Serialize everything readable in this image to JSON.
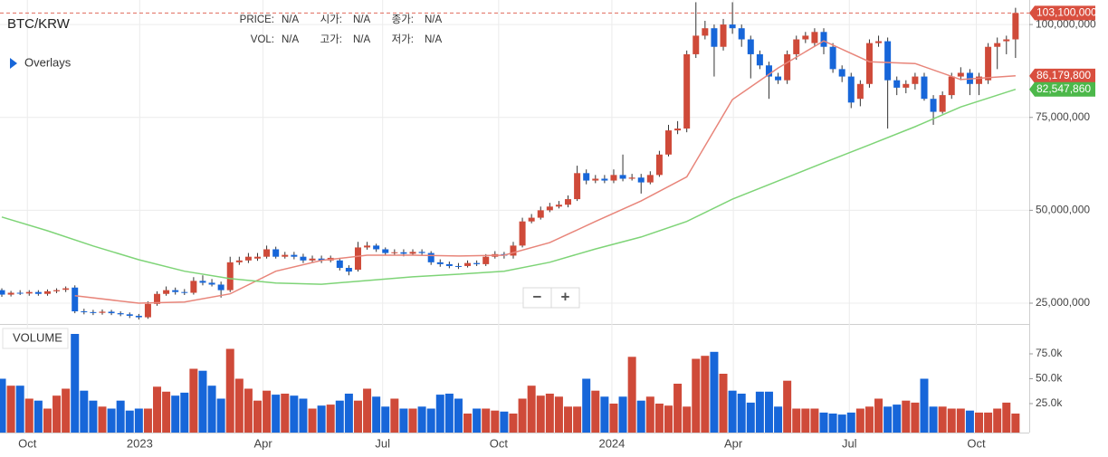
{
  "header": {
    "fields": [
      {
        "label": "PRICE:",
        "value": "N/A"
      },
      {
        "label": "시가:",
        "value": "N/A"
      },
      {
        "label": "종가:",
        "value": "N/A"
      },
      {
        "label": "VOL:",
        "value": "N/A"
      },
      {
        "label": "고가:",
        "value": "N/A"
      },
      {
        "label": "저가:",
        "value": "N/A"
      }
    ],
    "overlays": "Overlays",
    "zoom_out": "−",
    "zoom_in": "+"
  },
  "chart_data": {
    "type": "candlestick",
    "title": "BTC/KRW",
    "up_color": "#cf4a39",
    "down_color": "#1766d9",
    "open": [
      28500000,
      27300000,
      27800000,
      27600000,
      28000000,
      27500000,
      28200000,
      28600000,
      29200000,
      22800000,
      22600000,
      22400000,
      22700000,
      22300000,
      22000000,
      21600000,
      21200000,
      24800000,
      27500000,
      28500000,
      28000000,
      27800000,
      31000000,
      30500000,
      30000000,
      28500000,
      36000000,
      36500000,
      37000000,
      37500000,
      39500000,
      37500000,
      38000000,
      37500000,
      36500000,
      37000000,
      36500000,
      36500000,
      34500000,
      34000000,
      40000000,
      40500000,
      39500000,
      38500000,
      38700000,
      38300000,
      38800000,
      38500000,
      36000000,
      35500000,
      35000000,
      35000000,
      35800000,
      35500000,
      37500000,
      38200000,
      37800000,
      40500000,
      47000000,
      48000000,
      50000000,
      51000000,
      51500000,
      53000000,
      60000000,
      58000000,
      58500000,
      58000000,
      59500000,
      58500000,
      58800000,
      57500000,
      59500000,
      65000000,
      71500000,
      72000000,
      92000000,
      97000000,
      99000000,
      94000000,
      100000000,
      99000000,
      96000000,
      92000000,
      89000000,
      86000000,
      85000000,
      92000000,
      96000000,
      95000000,
      98000000,
      94000000,
      88000000,
      86000000,
      80000000,
      84000000,
      95000000,
      95500000,
      85000000,
      83000000,
      84000000,
      86000000,
      80000000,
      76500000,
      81000000,
      86000000,
      87000000,
      84000000,
      85000000,
      94000000,
      95500000,
      96000000
    ],
    "high": [
      29000000,
      28300000,
      28500000,
      28500000,
      28500000,
      28700000,
      29000000,
      29500000,
      29800000,
      23500000,
      23200000,
      23300000,
      23200000,
      22800000,
      22500000,
      22100000,
      25500000,
      28200000,
      29500000,
      29200000,
      28800000,
      32000000,
      32500000,
      31500000,
      30800000,
      37500000,
      37500000,
      38500000,
      38500000,
      40500000,
      40200000,
      38800000,
      38800000,
      38300000,
      37800000,
      37800000,
      37800000,
      37200000,
      35200000,
      41500000,
      41500000,
      41000000,
      40000000,
      39500000,
      39500000,
      39500000,
      39500000,
      39000000,
      36800000,
      36200000,
      35800000,
      36500000,
      36500000,
      38200000,
      39000000,
      38800000,
      41500000,
      48000000,
      49000000,
      51000000,
      52000000,
      52500000,
      54000000,
      62000000,
      61000000,
      59500000,
      59500000,
      61000000,
      65000000,
      59800000,
      59800000,
      60500000,
      66000000,
      73000000,
      74000000,
      93000000,
      106000000,
      101000000,
      100000000,
      101500000,
      106000000,
      100000000,
      97000000,
      93000000,
      90000000,
      87000000,
      93000000,
      97000000,
      98000000,
      99000000,
      99000000,
      95000000,
      89000000,
      87000000,
      85000000,
      96000000,
      97000000,
      96500000,
      86000000,
      85000000,
      87000000,
      87000000,
      81000000,
      82000000,
      87000000,
      88500000,
      88000000,
      87000000,
      95000000,
      96500000,
      97000000,
      104500000
    ],
    "low": [
      26700000,
      26800000,
      27200000,
      27000000,
      27000000,
      27000000,
      27700000,
      28000000,
      22300000,
      22000000,
      21800000,
      21900000,
      21800000,
      21500000,
      21000000,
      20600000,
      20800000,
      24300000,
      27000000,
      27300000,
      27200000,
      27300000,
      29800000,
      29500000,
      26500000,
      28000000,
      35300000,
      35800000,
      36400000,
      37000000,
      37000000,
      37000000,
      36800000,
      35800000,
      36000000,
      35800000,
      36000000,
      33800000,
      32500000,
      33500000,
      39400000,
      38800000,
      37800000,
      38000000,
      37600000,
      37800000,
      37800000,
      35300000,
      34800000,
      34400000,
      34200000,
      34600000,
      35000000,
      35000000,
      37000000,
      37000000,
      37000000,
      40000000,
      46500000,
      47500000,
      49500000,
      50500000,
      50800000,
      52500000,
      57000000,
      57300000,
      57300000,
      57300000,
      57800000,
      58000000,
      54500000,
      57000000,
      59000000,
      64500000,
      70500000,
      71000000,
      91000000,
      96000000,
      86000000,
      93000000,
      97500000,
      94000000,
      85500000,
      88000000,
      80000000,
      84000000,
      84000000,
      90500000,
      95000000,
      94000000,
      92000000,
      87000000,
      84500000,
      77500000,
      78000000,
      83000000,
      94000000,
      72000000,
      81000000,
      81500000,
      82500000,
      79500000,
      73000000,
      76000000,
      80000000,
      85000000,
      81000000,
      81000000,
      84000000,
      88000000,
      92000000,
      91000000
    ],
    "close": [
      27300000,
      27800000,
      27600000,
      28000000,
      27500000,
      28200000,
      28500000,
      29000000,
      22800000,
      22600000,
      22400000,
      22700000,
      22300000,
      22000000,
      21600000,
      21200000,
      24800000,
      27500000,
      28500000,
      28000000,
      27800000,
      31000000,
      30500000,
      30000000,
      28500000,
      36000000,
      36500000,
      37500000,
      37500000,
      39500000,
      37500000,
      38000000,
      37500000,
      36500000,
      37000000,
      36500000,
      37200000,
      34500000,
      33500000,
      40000000,
      40500000,
      39500000,
      38500000,
      38700000,
      38300000,
      38800000,
      38500000,
      36000000,
      35500000,
      35000000,
      34800000,
      35800000,
      35500000,
      37500000,
      38200000,
      37800000,
      40500000,
      47000000,
      48000000,
      50000000,
      51000000,
      51500000,
      53000000,
      60000000,
      58000000,
      58500000,
      58000000,
      59500000,
      58500000,
      58800000,
      57500000,
      59500000,
      65000000,
      71500000,
      72000000,
      92000000,
      97000000,
      99000000,
      94000000,
      100000000,
      99000000,
      96000000,
      92000000,
      89000000,
      86000000,
      85000000,
      92000000,
      96000000,
      97000000,
      98000000,
      94000000,
      88000000,
      86000000,
      79000000,
      84000000,
      95000000,
      95500000,
      85000000,
      83000000,
      84000000,
      86000000,
      80000000,
      76500000,
      81000000,
      86000000,
      87000000,
      84000000,
      86000000,
      94000000,
      95000000,
      96000000,
      103100000
    ],
    "ylim": [
      19400000,
      106600000
    ],
    "yticks": [
      {
        "value": 25000000,
        "label": "25,000,000"
      },
      {
        "value": 50000000,
        "label": "50,000,000"
      },
      {
        "value": 75000000,
        "label": "75,000,000"
      },
      {
        "value": 100000000,
        "label": "100,000,000"
      }
    ],
    "xlim": [
      -0.2,
      112.5
    ],
    "xticks": [
      {
        "value": 2.8,
        "label": "Oct"
      },
      {
        "value": 15.1,
        "label": "2023"
      },
      {
        "value": 28.6,
        "label": "Apr"
      },
      {
        "value": 41.7,
        "label": "Jul"
      },
      {
        "value": 54.4,
        "label": "Oct"
      },
      {
        "value": 66.8,
        "label": "2024"
      },
      {
        "value": 80.1,
        "label": "Apr"
      },
      {
        "value": 92.8,
        "label": "Jul"
      },
      {
        "value": 106.7,
        "label": "Oct"
      }
    ],
    "grid": true,
    "last_price": {
      "value": 103100000,
      "label": "103,100,000"
    },
    "overlays": [
      {
        "color": "#e8857a",
        "x": [
          8,
          15,
          20,
          25,
          30,
          35,
          40,
          45,
          50,
          55,
          60,
          65,
          70,
          75,
          80,
          85,
          90,
          95,
          100,
          105,
          111
        ],
        "values": [
          27000000,
          25000000,
          25300000,
          27500000,
          33600000,
          36500000,
          37900000,
          37900000,
          37700000,
          37900000,
          41300000,
          47000000,
          52500000,
          59000000,
          79800000,
          88300000,
          95600000,
          90000000,
          89500000,
          85200000,
          86179800
        ],
        "last": {
          "value": 86179800,
          "label": "86,179,800"
        }
      },
      {
        "color": "#7ed477",
        "x": [
          0,
          5,
          10,
          15,
          20,
          25,
          30,
          35,
          40,
          45,
          50,
          55,
          60,
          65,
          70,
          75,
          80,
          85,
          90,
          95,
          100,
          105,
          111
        ],
        "values": [
          48200000,
          44500000,
          40400000,
          36700000,
          33600000,
          31600000,
          30400000,
          30100000,
          31100000,
          32100000,
          32800000,
          33600000,
          36000000,
          39600000,
          42800000,
          47000000,
          53000000,
          57900000,
          62800000,
          67600000,
          72500000,
          77800000,
          82547860
        ],
        "last": {
          "value": 82547860,
          "label": "82,547,860"
        }
      }
    ],
    "volume": {
      "title": "VOLUME",
      "values": [
        50000,
        43000,
        43000,
        30000,
        28000,
        20000,
        33000,
        40000,
        95000,
        38000,
        28000,
        22000,
        20000,
        28000,
        18000,
        20000,
        20000,
        42000,
        37000,
        33000,
        36000,
        60000,
        58000,
        43000,
        30000,
        80000,
        50000,
        40000,
        28000,
        38000,
        34000,
        35000,
        33000,
        30000,
        20000,
        23000,
        24000,
        28000,
        35000,
        28000,
        40000,
        32000,
        22000,
        30000,
        20000,
        20000,
        22000,
        20000,
        34000,
        35000,
        30000,
        15000,
        20000,
        20000,
        18000,
        17000,
        15000,
        30000,
        43000,
        33000,
        35000,
        32000,
        22000,
        22000,
        50000,
        38000,
        32000,
        25000,
        32000,
        72000,
        28000,
        32000,
        25000,
        23000,
        45000,
        22000,
        70000,
        73000,
        77000,
        55000,
        38000,
        35000,
        26000,
        37000,
        37000,
        22000,
        48000,
        20000,
        20000,
        20000,
        16000,
        15000,
        14000,
        16000,
        20000,
        22000,
        30000,
        22000,
        24000,
        28000,
        26000,
        50000,
        22000,
        22000,
        20000,
        20000,
        18000,
        16000,
        16000,
        20000,
        26000,
        15000
      ],
      "ylim": [
        0,
        105000
      ],
      "yticks": [
        {
          "value": 25000,
          "label": "25.0k"
        },
        {
          "value": 50000,
          "label": "50.0k"
        },
        {
          "value": 75000,
          "label": "75.0k"
        }
      ]
    }
  }
}
